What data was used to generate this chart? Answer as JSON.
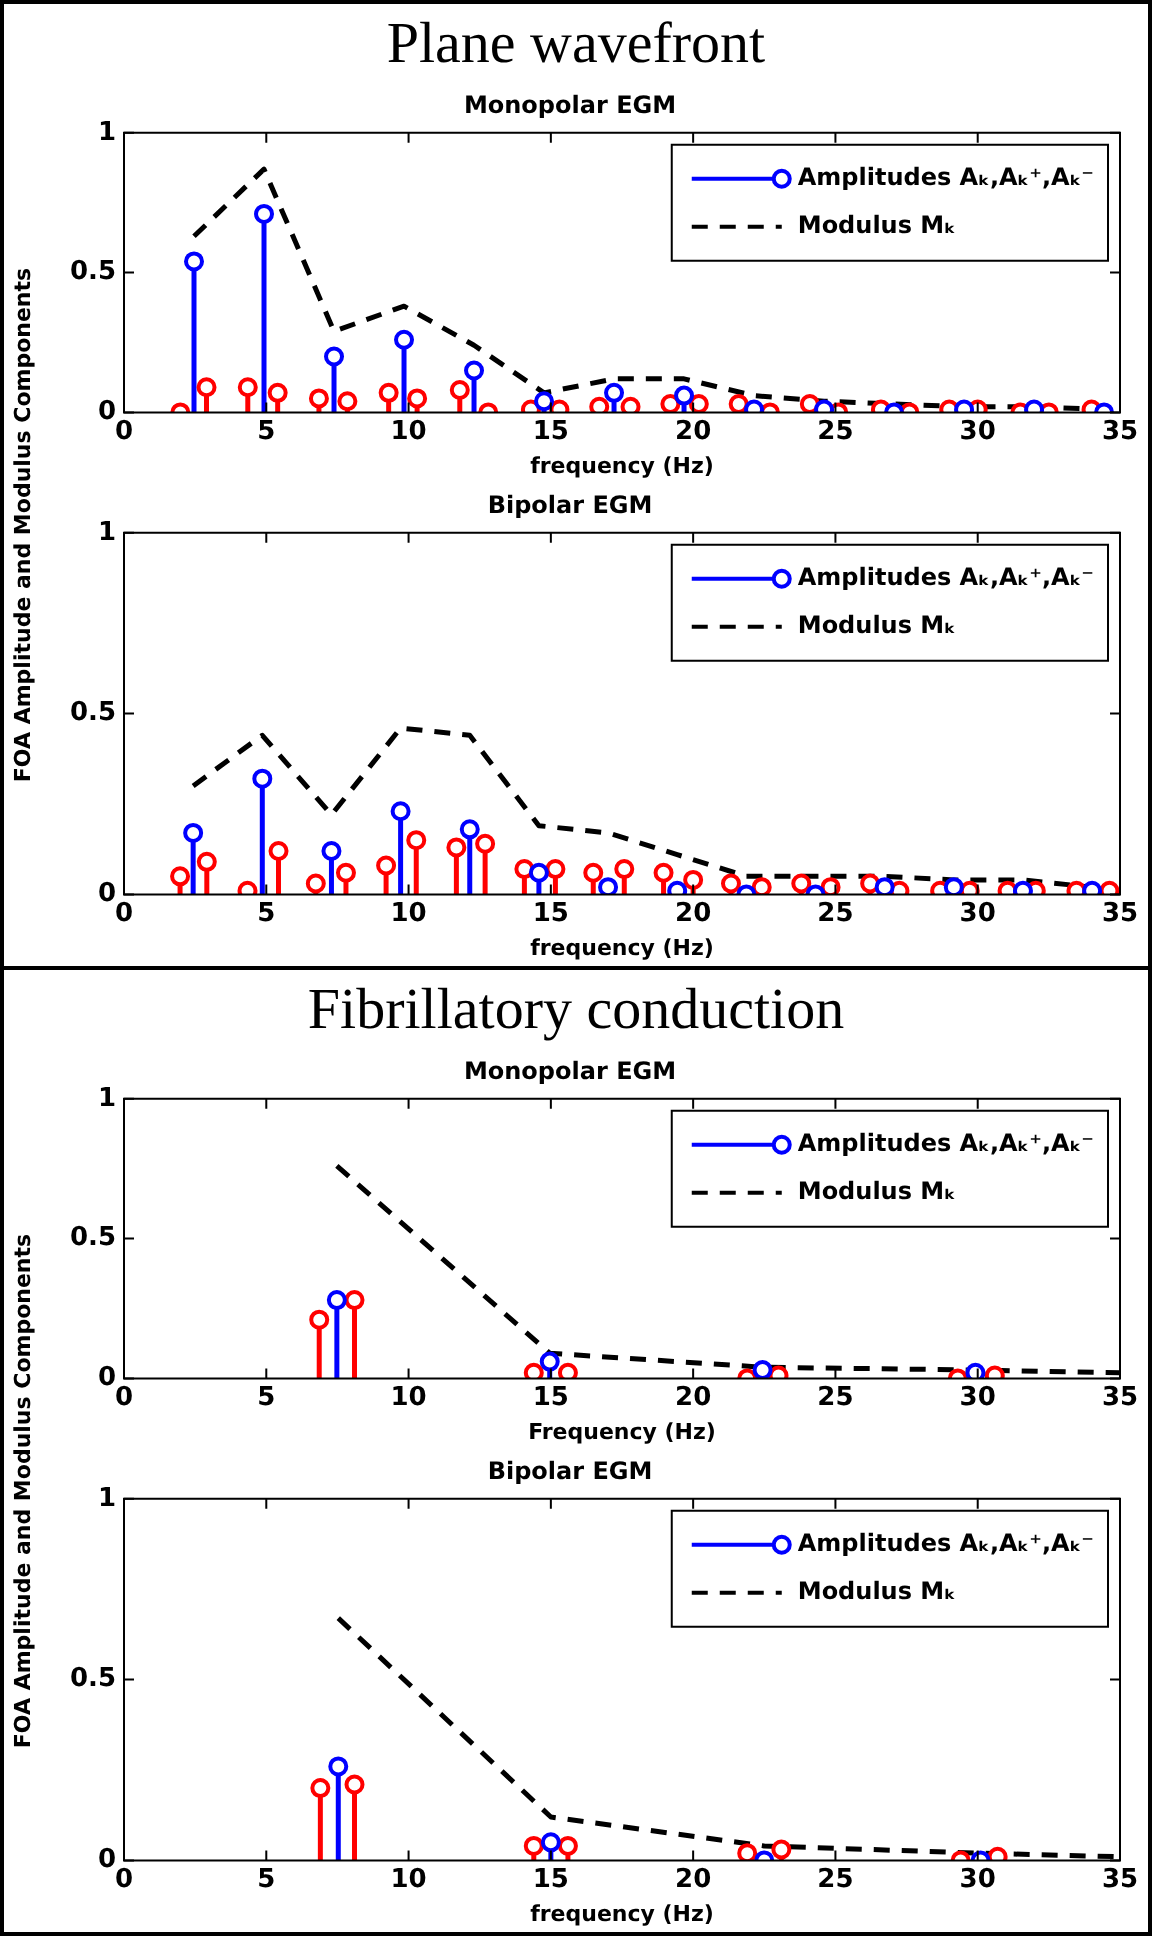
{
  "chart_data": [
    {
      "type": "lollipop",
      "title": "Plane wavefront",
      "subtitle": "Monopolar EGM",
      "xlabel": "frequency (Hz)",
      "ylabel": "FOA Amplitude and Modulus Components",
      "xlim": [
        0,
        35
      ],
      "xticks": [
        0,
        5,
        10,
        15,
        20,
        25,
        30,
        35
      ],
      "ylim": [
        0,
        1
      ],
      "yticks": [
        0,
        0.5,
        1
      ],
      "legend": "top right",
      "marker": "circle",
      "series": [
        {
          "name": "Amplitudes Aₖ,Aₖ⁺,Aₖ⁻",
          "type": "lollipop",
          "color": "#0000ff",
          "x": [
            2.46,
            4.92,
            7.38,
            9.84,
            12.3,
            14.76,
            17.22,
            19.68,
            22.14,
            24.6,
            27.06,
            29.52,
            31.98,
            34.44
          ],
          "values": [
            0.54,
            0.71,
            0.2,
            0.26,
            0.15,
            0.04,
            0.07,
            0.06,
            0.01,
            0.01,
            0,
            0.01,
            0.01,
            0
          ]
        },
        {
          "type": "lollipop",
          "color": "#ff0000",
          "x": [
            1.98,
            2.9,
            4.35,
            5.4,
            6.85,
            7.85,
            9.3,
            10.3,
            11.8,
            12.8,
            14.3,
            15.3,
            16.7,
            17.8,
            19.2,
            20.2,
            21.6,
            22.7,
            24.1,
            25.1,
            26.6,
            27.6,
            29.0,
            30.0,
            31.5,
            32.5,
            34.0
          ],
          "values": [
            0,
            0.09,
            0.09,
            0.07,
            0.05,
            0.04,
            0.07,
            0.05,
            0.08,
            0,
            0.01,
            0.01,
            0.02,
            0.02,
            0.03,
            0.03,
            0.03,
            0,
            0.03,
            0,
            0.01,
            0,
            0.01,
            0.01,
            0,
            0,
            0.01
          ]
        },
        {
          "name": "Modulus Mₖ",
          "type": "line",
          "color": "#000000",
          "line_style": "dashed",
          "marker": "none",
          "x": [
            2.46,
            4.92,
            7.38,
            9.84,
            12.3,
            14.76,
            17.22,
            19.68,
            22.14,
            24.6,
            27.06,
            29.52,
            31.98,
            34.44
          ],
          "values": [
            0.63,
            0.87,
            0.29,
            0.38,
            0.24,
            0.07,
            0.12,
            0.12,
            0.06,
            0.04,
            0.03,
            0.02,
            0.02,
            0.01
          ]
        }
      ]
    },
    {
      "type": "lollipop",
      "title": "Bipolar EGM",
      "xlabel": "frequency (Hz)",
      "xlim": [
        0,
        35
      ],
      "xticks": [
        0,
        5,
        10,
        15,
        20,
        25,
        30,
        35
      ],
      "ylim": [
        0,
        1
      ],
      "yticks": [
        0,
        0.5,
        1
      ],
      "legend": "top right",
      "marker": "circle",
      "series": [
        {
          "name": "Amplitudes Aₖ,Aₖ⁺,Aₖ⁻",
          "type": "lollipop",
          "color": "#0000ff",
          "x": [
            2.43,
            4.86,
            7.29,
            9.72,
            12.15,
            14.58,
            17.01,
            19.44,
            21.87,
            24.3,
            26.73,
            29.16,
            31.59,
            34.02
          ],
          "values": [
            0.17,
            0.32,
            0.12,
            0.23,
            0.18,
            0.06,
            0.02,
            0.01,
            0,
            0,
            0.02,
            0.02,
            0.01,
            0.01
          ]
        },
        {
          "type": "lollipop",
          "color": "#ff0000",
          "x": [
            1.97,
            2.91,
            4.34,
            5.43,
            6.74,
            7.8,
            9.21,
            10.27,
            11.68,
            12.69,
            14.07,
            15.16,
            16.49,
            17.58,
            18.96,
            20.0,
            21.33,
            22.41,
            23.8,
            24.83,
            26.22,
            27.25,
            28.68,
            29.72,
            31.05,
            32.04,
            33.47,
            34.63
          ],
          "values": [
            0.05,
            0.09,
            0.01,
            0.12,
            0.03,
            0.06,
            0.08,
            0.15,
            0.13,
            0.14,
            0.07,
            0.07,
            0.06,
            0.07,
            0.06,
            0.04,
            0.03,
            0.02,
            0.03,
            0.02,
            0.03,
            0.01,
            0.01,
            0.01,
            0.01,
            0.01,
            0.01,
            0.01
          ]
        },
        {
          "name": "Modulus Mₖ",
          "type": "line",
          "color": "#000000",
          "line_style": "dashed",
          "marker": "none",
          "x": [
            2.43,
            4.86,
            7.29,
            9.72,
            12.15,
            14.58,
            17.01,
            19.44,
            21.87,
            24.3,
            26.73,
            29.16,
            31.59,
            34.02
          ],
          "values": [
            0.3,
            0.44,
            0.22,
            0.46,
            0.44,
            0.19,
            0.17,
            0.11,
            0.05,
            0.05,
            0.05,
            0.04,
            0.04,
            0.02
          ]
        }
      ]
    },
    {
      "type": "lollipop",
      "title": "Fibrillatory conduction",
      "subtitle": "Monopolar EGM",
      "xlabel": "Frequency (Hz)",
      "ylabel": "FOA Amplitude and Modulus Components",
      "xlim": [
        0,
        35
      ],
      "xticks": [
        0,
        5,
        10,
        15,
        20,
        25,
        30,
        35
      ],
      "ylim": [
        0,
        1
      ],
      "yticks": [
        0,
        0.5,
        1
      ],
      "legend": "top right",
      "marker": "circle",
      "series": [
        {
          "name": "Amplitudes Aₖ,Aₖ⁺,Aₖ⁻",
          "type": "lollipop",
          "color": "#0000ff",
          "x": [
            7.48,
            14.96,
            22.44,
            29.92
          ],
          "values": [
            0.28,
            0.06,
            0.03,
            0.02
          ]
        },
        {
          "type": "lollipop",
          "color": "#ff0000",
          "x": [
            6.86,
            8.1,
            14.4,
            15.6,
            21.9,
            23.0,
            29.3,
            30.6
          ],
          "values": [
            0.21,
            0.28,
            0.02,
            0.02,
            0,
            0.01,
            0,
            0.01
          ]
        },
        {
          "name": "Modulus Mₖ",
          "type": "line",
          "color": "#000000",
          "line_style": "dashed",
          "marker": "none",
          "x": [
            7.48,
            14.96,
            22.44,
            29.92,
            35
          ],
          "values": [
            0.76,
            0.09,
            0.04,
            0.03,
            0.02
          ]
        }
      ]
    },
    {
      "type": "lollipop",
      "title": "Bipolar EGM",
      "xlabel": "frequency (Hz)",
      "xlim": [
        0,
        35
      ],
      "xticks": [
        0,
        5,
        10,
        15,
        20,
        25,
        30,
        35
      ],
      "ylim": [
        0,
        1
      ],
      "yticks": [
        0,
        0.5,
        1
      ],
      "legend": "top right",
      "marker": "circle",
      "series": [
        {
          "name": "Amplitudes Aₖ,Aₖ⁺,Aₖ⁻",
          "type": "lollipop",
          "color": "#0000ff",
          "x": [
            7.53,
            15.0,
            22.5,
            30.1
          ],
          "values": [
            0.26,
            0.05,
            0,
            0
          ]
        },
        {
          "type": "lollipop",
          "color": "#ff0000",
          "x": [
            6.9,
            8.1,
            14.4,
            15.6,
            21.9,
            23.1,
            29.4,
            30.7
          ],
          "values": [
            0.2,
            0.21,
            0.04,
            0.04,
            0.02,
            0.03,
            0,
            0.01
          ]
        },
        {
          "name": "Modulus Mₖ",
          "type": "line",
          "color": "#000000",
          "line_style": "dashed",
          "marker": "none",
          "x": [
            7.53,
            15.0,
            22.5,
            30.1,
            35
          ],
          "values": [
            0.67,
            0.12,
            0.04,
            0.02,
            0.01
          ]
        }
      ]
    }
  ]
}
